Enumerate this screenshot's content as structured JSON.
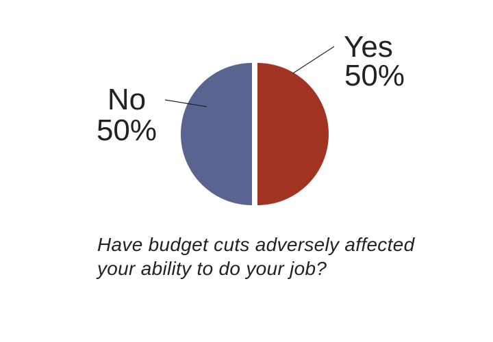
{
  "chart_data": {
    "type": "pie",
    "title": "Have budget cuts adversely affected your ability to do your job?",
    "slices": [
      {
        "label": "Yes",
        "value": 50,
        "value_label": "50%",
        "color": "#a33423"
      },
      {
        "label": "No",
        "value": 50,
        "value_label": "50%",
        "color": "#5a6490"
      }
    ],
    "legend": "none",
    "labels": "outside with leader lines"
  }
}
